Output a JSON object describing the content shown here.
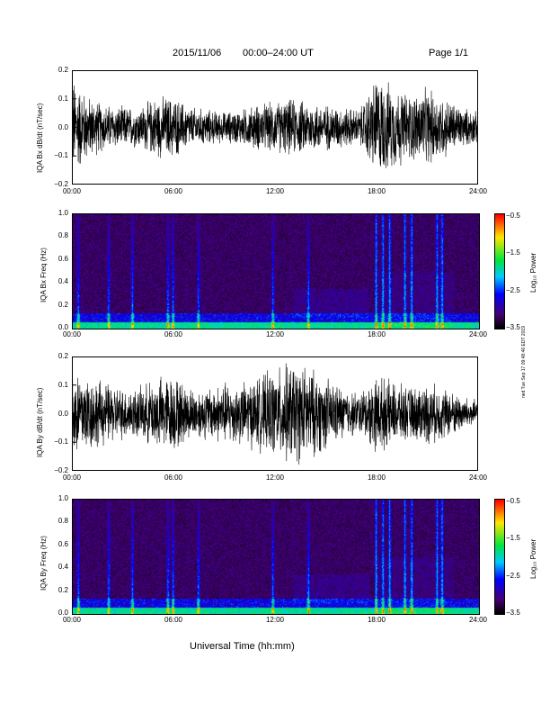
{
  "header": {
    "date": "2015/11/06",
    "time_range": "00:00–24:00 UT",
    "page": "Page 1/1"
  },
  "xlabel": "Universal Time (hh:mm)",
  "sidenote": "ned Tue Sep 17 09:48:46 EDT 2019",
  "colors": {
    "trace": "#000000",
    "background": "#ffffff"
  },
  "chart_data": [
    {
      "type": "line",
      "title": "",
      "ylabel": "IQA Bx dB/dt (nT/sec)",
      "xlabel": "",
      "x_ticks": [
        "00:00",
        "06:00",
        "12:00",
        "18:00",
        "24:00"
      ],
      "y_ticks": [
        "0.2",
        "0.1",
        "0.0",
        "−0.1",
        "−0.2"
      ],
      "ylim": [
        -0.2,
        0.2
      ],
      "xlim_hours": [
        0,
        24
      ],
      "envelope": {
        "hours": [
          0,
          1,
          2,
          3,
          4,
          5,
          6,
          7,
          8,
          9,
          10,
          11,
          12,
          13,
          14,
          15,
          16,
          17,
          18,
          19,
          20,
          21,
          22,
          23,
          24
        ],
        "amplitude": [
          0.2,
          0.12,
          0.09,
          0.08,
          0.08,
          0.12,
          0.12,
          0.08,
          0.07,
          0.06,
          0.07,
          0.09,
          0.1,
          0.11,
          0.1,
          0.09,
          0.08,
          0.07,
          0.2,
          0.16,
          0.13,
          0.15,
          0.12,
          0.08,
          0.06
        ]
      }
    },
    {
      "type": "heatmap",
      "title": "",
      "ylabel": "IQA Bx Freq (Hz)",
      "xlabel": "",
      "x_ticks": [
        "00:00",
        "06:00",
        "12:00",
        "18:00",
        "24:00"
      ],
      "y_ticks": [
        "1.0",
        "0.8",
        "0.6",
        "0.4",
        "0.2",
        "0.0"
      ],
      "ylim": [
        0,
        1.0
      ],
      "colorbar": {
        "title": "Log₁₀ Power",
        "ticks": [
          "−0.5",
          "−1.5",
          "−2.5",
          "−3.5"
        ],
        "range": [
          -3.5,
          -0.5
        ]
      }
    },
    {
      "type": "line",
      "title": "",
      "ylabel": "IQA By dB/dt (nT/sec)",
      "xlabel": "",
      "x_ticks": [
        "00:00",
        "06:00",
        "12:00",
        "18:00",
        "24:00"
      ],
      "y_ticks": [
        "0.2",
        "0.1",
        "0.0",
        "−0.1",
        "−0.2"
      ],
      "ylim": [
        -0.2,
        0.2
      ],
      "xlim_hours": [
        0,
        24
      ],
      "envelope": {
        "hours": [
          0,
          1,
          2,
          3,
          4,
          5,
          6,
          7,
          8,
          9,
          10,
          11,
          12,
          13,
          14,
          15,
          16,
          17,
          18,
          19,
          20,
          21,
          22,
          23,
          24
        ],
        "amplitude": [
          0.2,
          0.15,
          0.12,
          0.1,
          0.1,
          0.14,
          0.15,
          0.1,
          0.1,
          0.12,
          0.12,
          0.14,
          0.17,
          0.2,
          0.18,
          0.14,
          0.1,
          0.08,
          0.15,
          0.12,
          0.1,
          0.12,
          0.1,
          0.07,
          0.05
        ]
      }
    },
    {
      "type": "heatmap",
      "title": "",
      "ylabel": "IQA By Freq (Hz)",
      "xlabel": "",
      "x_ticks": [
        "00:00",
        "06:00",
        "12:00",
        "18:00",
        "24:00"
      ],
      "y_ticks": [
        "1.0",
        "0.8",
        "0.6",
        "0.4",
        "0.2",
        "0.0"
      ],
      "ylim": [
        0,
        1.0
      ],
      "colorbar": {
        "title": "Log₁₀ Power",
        "ticks": [
          "−0.5",
          "−1.5",
          "−2.5",
          "−3.5"
        ],
        "range": [
          -3.5,
          -0.5
        ]
      }
    }
  ]
}
